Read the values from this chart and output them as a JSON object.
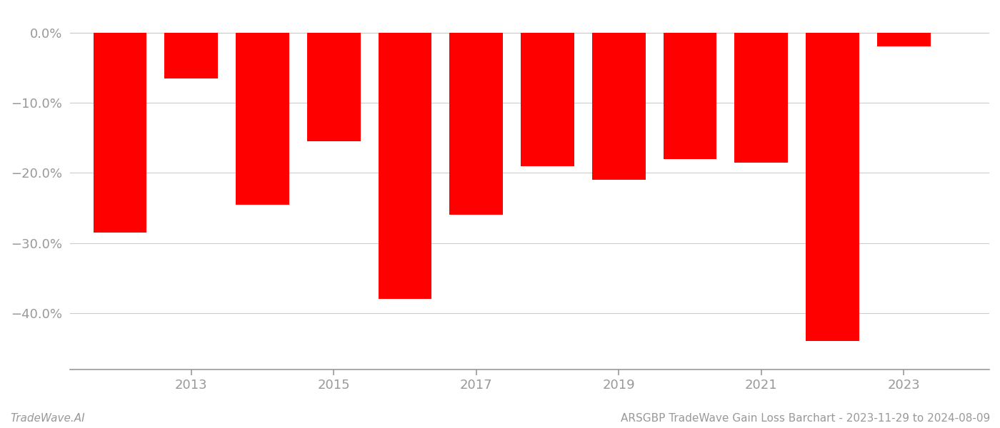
{
  "years": [
    2012,
    2013,
    2014,
    2015,
    2016,
    2017,
    2018,
    2019,
    2020,
    2021,
    2022,
    2023
  ],
  "values": [
    -0.285,
    -0.065,
    -0.245,
    -0.155,
    -0.38,
    -0.26,
    -0.19,
    -0.21,
    -0.18,
    -0.185,
    -0.44,
    -0.02
  ],
  "bar_color": "#ff0000",
  "ylim_min": -0.48,
  "ylim_max": 0.025,
  "yticks": [
    0.0,
    -0.1,
    -0.2,
    -0.3,
    -0.4
  ],
  "ytick_labels": [
    "0.0%",
    "−10.0%",
    "−20.0%",
    "−30.0%",
    "−40.0%"
  ],
  "xtick_positions": [
    2013,
    2015,
    2017,
    2019,
    2021,
    2023
  ],
  "xtick_labels": [
    "2013",
    "2015",
    "2017",
    "2019",
    "2021",
    "2023"
  ],
  "background_color": "#ffffff",
  "grid_color": "#cccccc",
  "axis_color": "#999999",
  "tick_color": "#999999",
  "footer_left": "TradeWave.AI",
  "footer_right": "ARSGBP TradeWave Gain Loss Barchart - 2023-11-29 to 2024-08-09",
  "bar_width": 0.75,
  "xlim_min": 2011.3,
  "xlim_max": 2024.2
}
